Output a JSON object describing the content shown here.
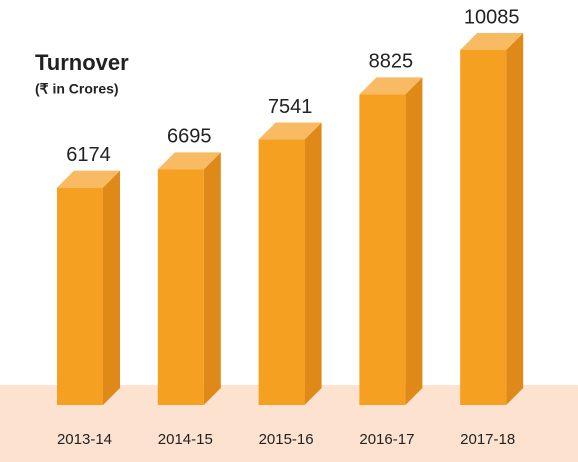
{
  "chart_data": {
    "type": "bar3d",
    "title": "Turnover",
    "subtitle": "(₹ in Crores)",
    "categories": [
      "2013-14",
      "2014-15",
      "2015-16",
      "2016-17",
      "2017-18"
    ],
    "values": [
      6174,
      6695,
      7541,
      8825,
      10085
    ],
    "color": "#f5a020"
  }
}
